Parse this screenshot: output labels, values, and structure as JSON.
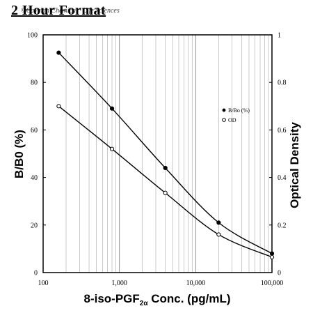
{
  "header": {
    "title": "2 Hour Format",
    "watermark": "©Cayman Chemical · Life Sciences"
  },
  "chart_data": {
    "type": "line",
    "x_scale": "log",
    "xlim": [
      100,
      100000
    ],
    "x_ticks": [
      100,
      1000,
      10000,
      100000
    ],
    "x_tick_labels": [
      "100",
      "1,000",
      "10,000",
      "100,000"
    ],
    "xlabel_main": "8-iso-PGF",
    "xlabel_sub": "2α",
    "xlabel_rest": " Conc. (pg/mL)",
    "ylabel": "B/B0 (%)",
    "ylim": [
      0,
      100
    ],
    "y_ticks": [
      0,
      20,
      40,
      60,
      80,
      100
    ],
    "y_tick_labels": [
      "0",
      "20",
      "40",
      "60",
      "80",
      "100"
    ],
    "y2label": "Optical Density",
    "y2lim": [
      0,
      1
    ],
    "y2_ticks": [
      0,
      0.2,
      0.4,
      0.6,
      0.8,
      1
    ],
    "y2_tick_labels": [
      "0",
      "0.2",
      "0.4",
      "0.6",
      "0.8",
      "1"
    ],
    "grid": "vertical",
    "legend_position": "right-middle",
    "series": [
      {
        "name": "B/Bo (%)",
        "axis": "left",
        "marker": "filled",
        "x": [
          160,
          800,
          4000,
          20000,
          100000
        ],
        "y": [
          92.5,
          69,
          44,
          21,
          8
        ]
      },
      {
        "name": "OD",
        "axis": "right",
        "marker": "open",
        "x": [
          160,
          800,
          4000,
          20000,
          100000
        ],
        "y": [
          0.7,
          0.52,
          0.335,
          0.16,
          0.065
        ]
      }
    ]
  }
}
